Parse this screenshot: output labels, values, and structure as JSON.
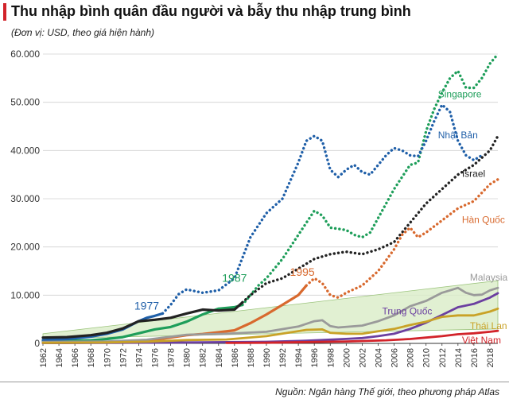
{
  "header": {
    "title": "Thu nhập bình quân đầu người và bẫy thu nhập trung bình",
    "unit": "(Đơn vị: USD, theo giá hiện hành)",
    "source": "Nguồn: Ngân hàng Thế giới, theo phương pháp Atlas"
  },
  "colors": {
    "singapore": "#1e9e5a",
    "japan": "#1f5fa8",
    "israel": "#222222",
    "korea": "#d8692e",
    "malaysia": "#9a9a9a",
    "china": "#6b3fa0",
    "thailand": "#c9a227",
    "vietnam": "#d2232a",
    "trap_band": "#d9ecc7",
    "grid": "#d0d0d0"
  },
  "chart_data": {
    "type": "line",
    "title": "Thu nhập bình quân đầu người và bẫy thu nhập trung bình",
    "ylabel": "",
    "ylim": [
      0,
      60000
    ],
    "xlim": [
      1962,
      2019
    ],
    "y_ticks": [
      {
        "value": 0,
        "label": "0"
      },
      {
        "value": 10000,
        "label": "10.000"
      },
      {
        "value": 20000,
        "label": "20.000"
      },
      {
        "value": 30000,
        "label": "30.000"
      },
      {
        "value": 40000,
        "label": "40.000"
      },
      {
        "value": 50000,
        "label": "50.000"
      },
      {
        "value": 60000,
        "label": "60.000"
      }
    ],
    "x_ticks": [
      "1962",
      "1964",
      "1966",
      "1968",
      "1970",
      "1972",
      "1974",
      "1976",
      "1978",
      "1980",
      "1982",
      "1984",
      "1986",
      "1988",
      "1990",
      "1992",
      "1994",
      "1996",
      "1998",
      "2000",
      "2002",
      "2004",
      "2006",
      "2008",
      "2010",
      "2012",
      "2014",
      "2016",
      "2018"
    ],
    "grid": true,
    "middle_income_band": {
      "x": [
        1962,
        2019
      ],
      "lower": [
        1000,
        3000
      ],
      "upper": [
        2000,
        13000
      ]
    },
    "annotations": [
      {
        "text": "1977",
        "x": 1975,
        "y": 7000,
        "color": "#1f5fa8"
      },
      {
        "text": "1987",
        "x": 1986,
        "y": 12800,
        "color": "#1e9e5a"
      },
      {
        "text": "1995",
        "x": 1994.5,
        "y": 14000,
        "color": "#d8692e"
      }
    ],
    "series": [
      {
        "name": "Singapore",
        "key": "singapore",
        "label": {
          "x": 2011.5,
          "y": 51000
        },
        "solid": {
          "x": [
            1962,
            1965,
            1968,
            1970,
            1972,
            1974,
            1976,
            1978,
            1980,
            1982,
            1984,
            1986,
            1987
          ],
          "y": [
            500,
            550,
            650,
            900,
            1300,
            2100,
            2900,
            3400,
            4500,
            6000,
            7200,
            7500,
            8000
          ]
        },
        "dotted": {
          "x": [
            1987,
            1988,
            1989,
            1990,
            1992,
            1994,
            1996,
            1997,
            1998,
            2000,
            2001,
            2002,
            2003,
            2004,
            2005,
            2006,
            2008,
            2009,
            2010,
            2011,
            2012,
            2013,
            2014,
            2015,
            2016,
            2017,
            2018,
            2019
          ],
          "y": [
            8000,
            10000,
            12000,
            13500,
            17500,
            22500,
            27500,
            26500,
            24000,
            23500,
            22500,
            22000,
            23000,
            26000,
            29000,
            32000,
            37000,
            37500,
            44000,
            48500,
            52000,
            55000,
            56500,
            53000,
            53000,
            55000,
            58000,
            60000
          ]
        }
      },
      {
        "name": "Nhật Bản",
        "key": "japan",
        "label": {
          "x": 2011.5,
          "y": 42500
        },
        "solid": {
          "x": [
            1962,
            1965,
            1968,
            1970,
            1972,
            1974,
            1975,
            1976,
            1977
          ],
          "y": [
            700,
            900,
            1400,
            2000,
            2900,
            4600,
            5300,
            5700,
            6200
          ]
        },
        "dotted": {
          "x": [
            1977,
            1978,
            1979,
            1980,
            1982,
            1984,
            1986,
            1988,
            1990,
            1992,
            1994,
            1995,
            1996,
            1997,
            1998,
            1999,
            2000,
            2001,
            2002,
            2003,
            2004,
            2005,
            2006,
            2007,
            2008,
            2009,
            2010,
            2011,
            2012,
            2013,
            2014,
            2015,
            2016,
            2017
          ],
          "y": [
            6200,
            8000,
            10200,
            11200,
            10500,
            11000,
            13500,
            22000,
            27000,
            30000,
            37500,
            42000,
            43000,
            42000,
            36000,
            34500,
            36000,
            37000,
            35500,
            35000,
            37000,
            39000,
            40500,
            40000,
            39000,
            38800,
            42000,
            46000,
            49500,
            48000,
            42000,
            39000,
            38000,
            39000
          ]
        }
      },
      {
        "name": "Israel",
        "key": "israel",
        "label": {
          "x": 2014.5,
          "y": 34500
        },
        "solid": {
          "x": [
            1962,
            1965,
            1968,
            1970,
            1972,
            1974,
            1976,
            1978,
            1980,
            1982,
            1984,
            1986,
            1987
          ],
          "y": [
            1200,
            1300,
            1700,
            2200,
            3100,
            4600,
            4900,
            5300,
            6200,
            7000,
            6800,
            7000,
            8500
          ]
        },
        "dotted": {
          "x": [
            1987,
            1988,
            1990,
            1992,
            1994,
            1996,
            1998,
            2000,
            2002,
            2004,
            2006,
            2008,
            2010,
            2012,
            2014,
            2016,
            2018,
            2019
          ],
          "y": [
            8500,
            10000,
            12500,
            13500,
            15500,
            17500,
            18500,
            19000,
            18500,
            19500,
            21000,
            25000,
            29000,
            32000,
            35000,
            37000,
            40000,
            43000
          ]
        }
      },
      {
        "name": "Hàn Quốc",
        "key": "korea",
        "label": {
          "x": 2014.5,
          "y": 25000
        },
        "solid": {
          "x": [
            1962,
            1965,
            1968,
            1970,
            1972,
            1974,
            1976,
            1978,
            1980,
            1982,
            1984,
            1986,
            1988,
            1990,
            1992,
            1994,
            1995
          ],
          "y": [
            100,
            120,
            200,
            280,
            330,
            500,
            750,
            1200,
            1700,
            1950,
            2300,
            2700,
            4200,
            6000,
            8000,
            10000,
            12000
          ]
        },
        "dotted": {
          "x": [
            1995,
            1996,
            1997,
            1998,
            1999,
            2000,
            2002,
            2004,
            2006,
            2007,
            2008,
            2009,
            2010,
            2012,
            2014,
            2016,
            2018,
            2019
          ],
          "y": [
            12000,
            13500,
            12500,
            10000,
            9500,
            10500,
            12000,
            15000,
            19500,
            22500,
            24000,
            22000,
            23000,
            25500,
            28000,
            29500,
            33000,
            34000
          ]
        }
      },
      {
        "name": "Malaysia",
        "key": "malaysia",
        "label": {
          "x": 2015.5,
          "y": 13000
        },
        "solid": {
          "x": [
            1962,
            1965,
            1970,
            1975,
            1980,
            1985,
            1990,
            1994,
            1996,
            1997,
            1998,
            1999,
            2002,
            2004,
            2006,
            2008,
            2010,
            2012,
            2013,
            2014,
            2015,
            2016,
            2017,
            2018,
            2019
          ],
          "y": [
            300,
            350,
            400,
            750,
            1800,
            2000,
            2400,
            3500,
            4600,
            4800,
            3600,
            3300,
            3700,
            4600,
            5800,
            7700,
            8800,
            10500,
            11000,
            11500,
            10500,
            10000,
            10100,
            11000,
            11500
          ]
        }
      },
      {
        "name": "Trung Quốc",
        "key": "china",
        "label": {
          "x": 2004.5,
          "y": 6000
        },
        "solid": {
          "x": [
            1962,
            1970,
            1980,
            1990,
            1995,
            2000,
            2002,
            2004,
            2006,
            2008,
            2010,
            2012,
            2014,
            2016,
            2018,
            2019
          ],
          "y": [
            70,
            110,
            200,
            330,
            540,
            930,
            1100,
            1500,
            2000,
            3000,
            4300,
            5900,
            7500,
            8200,
            9500,
            10400
          ]
        }
      },
      {
        "name": "Thái Lan",
        "key": "thailand",
        "label": {
          "x": 2015.5,
          "y": 3000
        },
        "solid": {
          "x": [
            1962,
            1970,
            1975,
            1980,
            1985,
            1990,
            1995,
            1997,
            1998,
            2000,
            2002,
            2004,
            2006,
            2008,
            2010,
            2012,
            2014,
            2016,
            2018,
            2019
          ],
          "y": [
            110,
            200,
            350,
            700,
            800,
            1500,
            2800,
            2900,
            2200,
            2000,
            2000,
            2500,
            3000,
            3800,
            4500,
            5500,
            5800,
            5800,
            6600,
            7200
          ]
        }
      },
      {
        "name": "Việt Nam",
        "key": "vietnam",
        "label": {
          "x": 2014.5,
          "y": 0
        },
        "solid": {
          "x": [
            1985,
            1990,
            1995,
            2000,
            2005,
            2008,
            2010,
            2012,
            2014,
            2016,
            2018,
            2019
          ],
          "y": [
            100,
            130,
            260,
            390,
            650,
            900,
            1200,
            1500,
            1900,
            2100,
            2400,
            2600
          ]
        }
      }
    ]
  }
}
